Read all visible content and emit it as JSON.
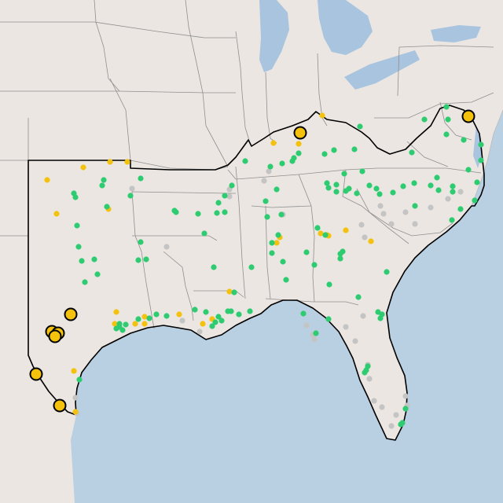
{
  "map": {
    "basemap": "us-southeast",
    "colors": {
      "water": "#b9cfe2",
      "land": "#ebe6e2",
      "state_lines": "#8f8f8f",
      "region_outline": "#000000"
    },
    "legend_colors": {
      "green": "#2ecc71",
      "yellow": "#f4c20d",
      "gray": "#c4c4c4",
      "large_yellow": "#f4c20d"
    }
  }
}
